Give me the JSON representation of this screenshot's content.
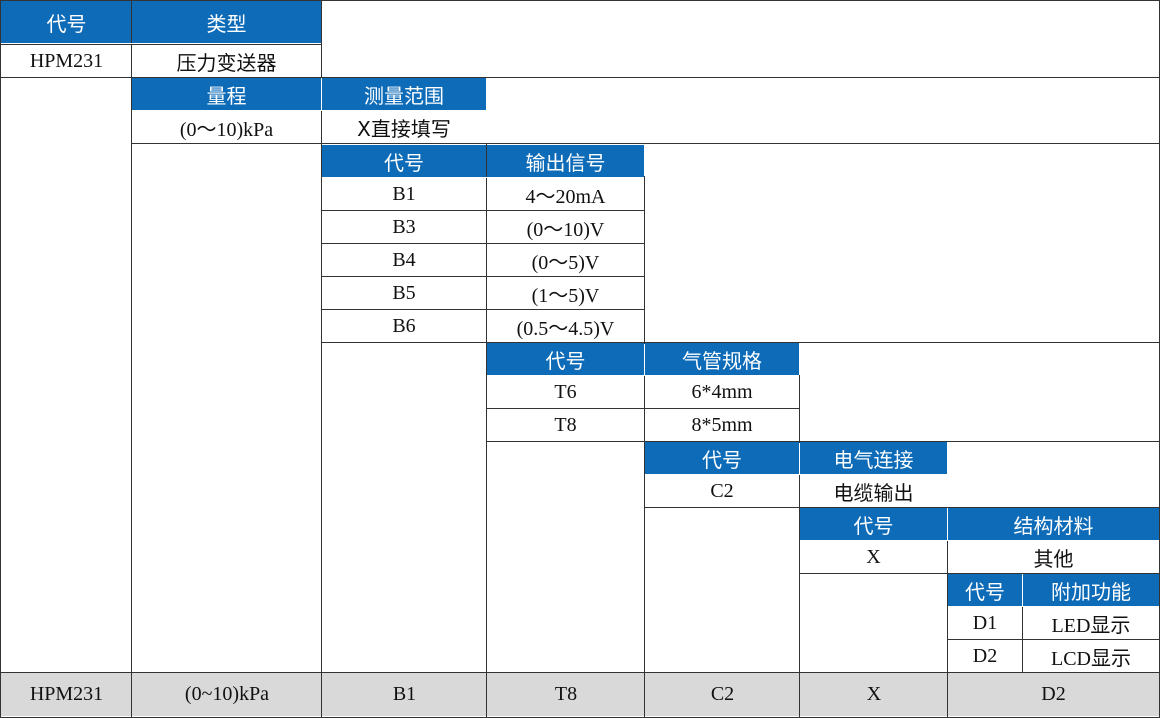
{
  "table": {
    "s1": {
      "code_label": "代号",
      "type_label": "类型",
      "code": "HPM231",
      "type": "压力变送器"
    },
    "s2": {
      "range_label": "量程",
      "measure_label": "测量范围",
      "range": "(0～10)kPa",
      "measure": "X直接填写"
    },
    "s3": {
      "code_label": "代号",
      "output_label": "输出信号",
      "rows": [
        {
          "code": "B1",
          "output": "4～20mA"
        },
        {
          "code": "B3",
          "output": "(0～10)V"
        },
        {
          "code": "B4",
          "output": "(0～5)V"
        },
        {
          "code": "B5",
          "output": "(1～5)V"
        },
        {
          "code": "B6",
          "output": "(0.5～4.5)V"
        }
      ]
    },
    "s4": {
      "code_label": "代号",
      "spec_label": "气管规格",
      "rows": [
        {
          "code": "T6",
          "spec": "6*4mm"
        },
        {
          "code": "T8",
          "spec": "8*5mm"
        }
      ]
    },
    "s5": {
      "code_label": "代号",
      "conn_label": "电气连接",
      "code": "C2",
      "conn": "电缆输出"
    },
    "s6": {
      "code_label": "代号",
      "material_label": "结构材料",
      "code": "X",
      "material": "其他"
    },
    "s7": {
      "code_label": "代号",
      "func_label": "附加功能",
      "rows": [
        {
          "code": "D1",
          "func": "LED显示"
        },
        {
          "code": "D2",
          "func": "LCD显示"
        }
      ]
    },
    "example": [
      "HPM231",
      "(0~10)kPa",
      "B1",
      "T8",
      "C2",
      "X",
      "D2"
    ]
  },
  "colors": {
    "header_bg": "#0D6BB8",
    "header_text": "#FFFFFF",
    "example_bg": "#D9D9D9",
    "border": "#333333"
  }
}
